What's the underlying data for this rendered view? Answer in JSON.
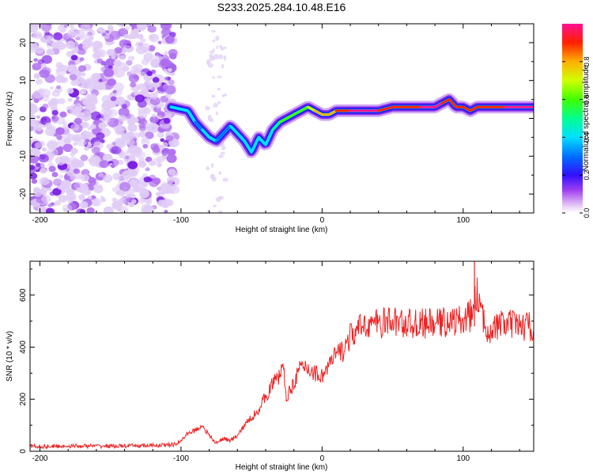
{
  "title": "S233.2025.284.10.48.E16",
  "chart_data": [
    {
      "type": "heatmap",
      "title": "S233.2025.284.10.48.E16",
      "xlabel": "Height of straight line (km)",
      "ylabel": "Frequency (Hz)",
      "xlim": [
        -207,
        150
      ],
      "ylim": [
        -25,
        25
      ],
      "xticks": [
        -200,
        -100,
        0,
        100
      ],
      "yticks": [
        -20,
        -10,
        0,
        10,
        20
      ],
      "noise_region_x": [
        -207,
        -104
      ],
      "ridge": {
        "x": [
          -107,
          -95,
          -90,
          -85,
          -80,
          -75,
          -70,
          -65,
          -60,
          -55,
          -50,
          -45,
          -40,
          -35,
          -30,
          -25,
          -20,
          -15,
          -10,
          -5,
          0,
          5,
          10,
          20,
          30,
          40,
          50,
          60,
          70,
          80,
          85,
          90,
          95,
          100,
          105,
          110,
          120,
          130,
          140,
          150
        ],
        "freq": [
          3,
          2,
          -1,
          -3,
          -5,
          -6,
          -4,
          -2,
          -4,
          -6,
          -9,
          -5,
          -7,
          -3,
          -1,
          0,
          1,
          2,
          3,
          2,
          1,
          1,
          2,
          2,
          2,
          2,
          3,
          3,
          3,
          3,
          4,
          5,
          3,
          3,
          2,
          3,
          3,
          3,
          3,
          3
        ],
        "amplitude": [
          0.3,
          0.35,
          0.3,
          0.3,
          0.35,
          0.3,
          0.25,
          0.3,
          0.35,
          0.4,
          0.3,
          0.35,
          0.3,
          0.4,
          0.5,
          0.55,
          0.6,
          0.6,
          0.55,
          0.65,
          0.8,
          0.7,
          0.75,
          0.9,
          0.95,
          0.9,
          0.85,
          0.85,
          0.9,
          0.95,
          0.9,
          0.85,
          0.8,
          0.85,
          0.85,
          0.9,
          0.9,
          0.9,
          0.95,
          0.95
        ]
      },
      "colorbar": {
        "label": "Normalized spectral amplitude",
        "ticks": [
          "0.0",
          "0.2",
          "0.4",
          "0.6",
          "0.8"
        ],
        "range": [
          0,
          1
        ]
      }
    },
    {
      "type": "line",
      "xlabel": "Height of straight line (km)",
      "ylabel": "SNR (10 * v/v)",
      "xlim": [
        -207,
        150
      ],
      "ylim": [
        0,
        730
      ],
      "xticks": [
        -200,
        -100,
        0,
        100
      ],
      "yticks": [
        0,
        200,
        400,
        600
      ],
      "color": "#ee2222",
      "series": [
        {
          "name": "SNR",
          "x": [
            -207,
            -195,
            -180,
            -160,
            -140,
            -120,
            -105,
            -100,
            -95,
            -90,
            -85,
            -80,
            -75,
            -70,
            -65,
            -60,
            -55,
            -50,
            -45,
            -40,
            -35,
            -30,
            -28,
            -25,
            -20,
            -15,
            -10,
            -5,
            0,
            5,
            10,
            15,
            20,
            25,
            30,
            40,
            50,
            60,
            70,
            80,
            90,
            100,
            105,
            108,
            110,
            115,
            120,
            130,
            140,
            150
          ],
          "y": [
            20,
            18,
            20,
            20,
            20,
            22,
            25,
            40,
            70,
            80,
            100,
            60,
            30,
            50,
            40,
            60,
            100,
            130,
            160,
            210,
            260,
            290,
            340,
            200,
            270,
            320,
            320,
            300,
            290,
            330,
            370,
            390,
            440,
            460,
            490,
            490,
            500,
            490,
            490,
            490,
            500,
            500,
            520,
            560,
            610,
            480,
            470,
            490,
            480,
            480
          ]
        }
      ]
    }
  ]
}
